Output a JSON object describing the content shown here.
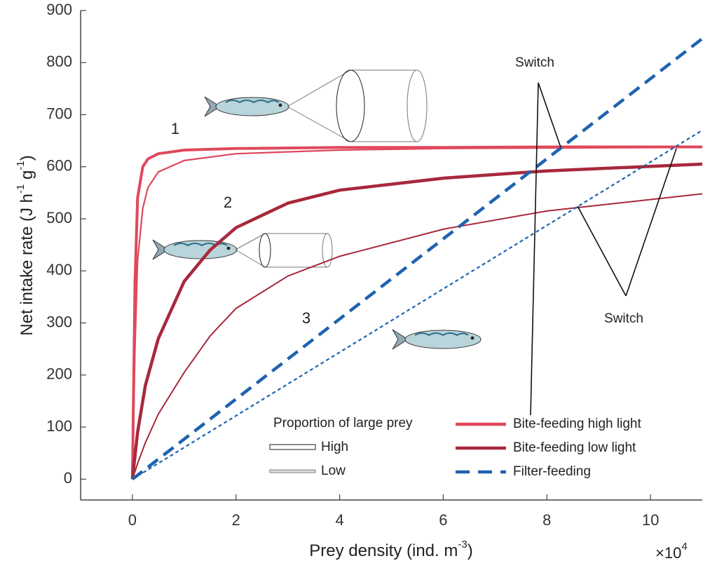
{
  "chart_data": {
    "type": "line",
    "xlabel": "Prey density (ind. m",
    "xlabel_sup": "-3",
    "xlabel_end": ")",
    "x_multiplier": "×10",
    "x_multiplier_sup": "4",
    "ylabel": "Net intake rate (J h",
    "ylabel_sup1": "-1",
    "ylabel_mid": " g",
    "ylabel_sup2": "-1",
    "ylabel_end": ")",
    "xlim": [
      -1,
      11
    ],
    "ylim": [
      -40,
      900
    ],
    "xticks": [
      0,
      2,
      4,
      6,
      8,
      10
    ],
    "yticks": [
      0,
      100,
      200,
      300,
      400,
      500,
      600,
      700,
      800,
      900
    ],
    "grid": false,
    "series": [
      {
        "name": "Bite-feeding high light",
        "color": "#e0485c",
        "width": 4,
        "dash": "none",
        "x": [
          0,
          0.05,
          0.1,
          0.2,
          0.3,
          0.5,
          1,
          2,
          4,
          6,
          8,
          11
        ],
        "values": [
          0,
          380,
          540,
          600,
          615,
          625,
          632,
          635,
          637,
          637,
          638,
          638
        ]
      },
      {
        "name": "Bite-feeding high light",
        "color": "#e0485c",
        "width": 2.2,
        "dash": "none",
        "x": [
          0,
          0.05,
          0.1,
          0.2,
          0.3,
          0.5,
          1,
          2,
          4,
          6,
          8,
          11
        ],
        "values": [
          0,
          250,
          420,
          520,
          560,
          590,
          612,
          625,
          632,
          635,
          636,
          637
        ]
      },
      {
        "name": "Bite-feeding low light",
        "color": "#a8283c",
        "width": 4.5,
        "dash": "none",
        "x": [
          0,
          0.1,
          0.25,
          0.5,
          1,
          1.5,
          2,
          3,
          4,
          6,
          8,
          11
        ],
        "values": [
          0,
          90,
          180,
          270,
          380,
          440,
          483,
          530,
          555,
          578,
          592,
          605
        ]
      },
      {
        "name": "Bite-feeding low light",
        "color": "#a8283c",
        "width": 2,
        "dash": "none",
        "x": [
          0,
          0.1,
          0.25,
          0.5,
          1,
          1.5,
          2,
          3,
          4,
          6,
          8,
          11
        ],
        "values": [
          0,
          30,
          70,
          125,
          205,
          275,
          328,
          390,
          428,
          480,
          515,
          548
        ]
      },
      {
        "name": "Filter-feeding",
        "color": "#1f63b0",
        "width": 4.5,
        "dash": "18 10",
        "x": [
          0,
          11
        ],
        "values": [
          0,
          846
        ]
      },
      {
        "name": "Filter-feeding",
        "color": "#1f63b0",
        "width": 2.2,
        "dash": "5 4",
        "x": [
          0,
          11
        ],
        "values": [
          0,
          670
        ]
      }
    ],
    "annotations": [
      "1",
      "2",
      "3",
      "Switch",
      "Switch"
    ],
    "prey_legend": {
      "title": "Proportion of large prey",
      "labels": [
        "High",
        "Low"
      ]
    }
  }
}
